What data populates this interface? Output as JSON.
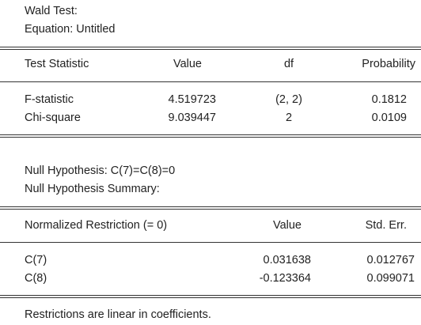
{
  "header": {
    "title": "Wald Test:",
    "equation": "Equation: Untitled"
  },
  "test_table": {
    "columns": [
      "Test Statistic",
      "Value",
      "df",
      "Probability"
    ],
    "rows": [
      [
        "F-statistic",
        "4.519723",
        "(2, 2)",
        "0.1812"
      ],
      [
        "Chi-square",
        "9.039447",
        "2",
        "0.0109"
      ]
    ]
  },
  "hypothesis": {
    "null": "Null Hypothesis: C(7)=C(8)=0",
    "summary": "Null Hypothesis Summary:"
  },
  "restriction_table": {
    "columns": [
      "Normalized Restriction (= 0)",
      "Value",
      "Std. Err."
    ],
    "rows": [
      [
        "C(7)",
        "0.031638",
        "0.012767"
      ],
      [
        "C(8)",
        "-0.123364",
        "0.099071"
      ]
    ]
  },
  "footer": {
    "note": "Restrictions are linear in coefficients."
  }
}
